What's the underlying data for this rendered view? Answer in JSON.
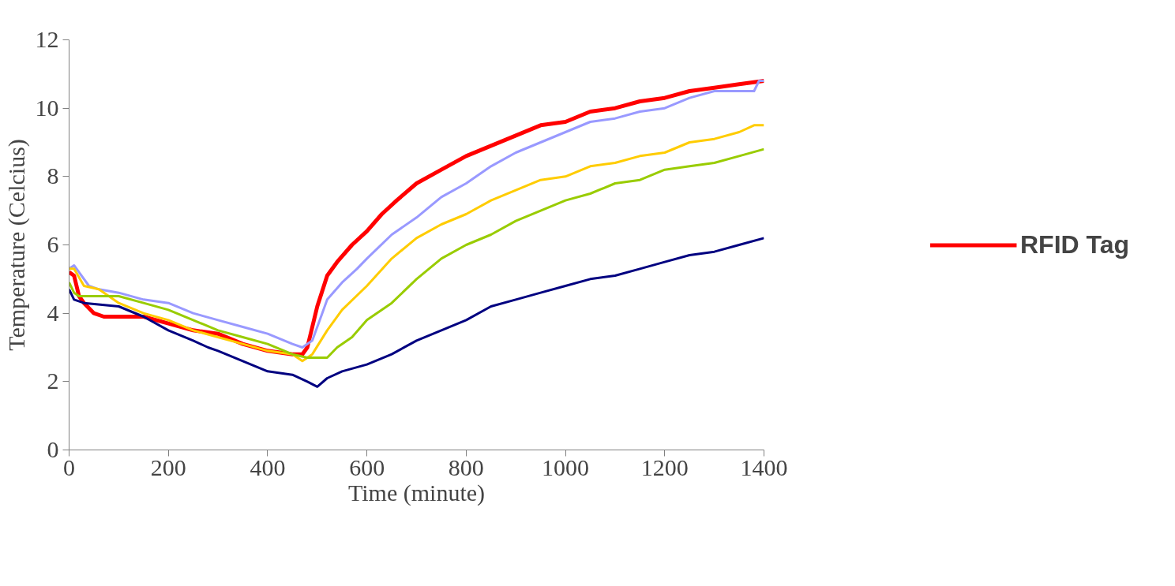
{
  "chart_data": {
    "type": "line",
    "xlabel": "Time (minute)",
    "ylabel": "Temperature (Celcius)",
    "xlim": [
      0,
      1400
    ],
    "xticks": [
      0,
      200,
      400,
      600,
      800,
      1000,
      1200,
      1400
    ],
    "ylim": [
      0,
      12
    ],
    "yticks": [
      0,
      2,
      4,
      6,
      8,
      10,
      12
    ],
    "grid": false,
    "legend": "right",
    "marker": "none",
    "line_style": "solid",
    "series": [
      {
        "name": "RFID Tag",
        "color": "#ff0000",
        "x": [
          0,
          10,
          20,
          30,
          50,
          70,
          150,
          200,
          250,
          300,
          350,
          400,
          450,
          470,
          480,
          500,
          520,
          540,
          570,
          600,
          630,
          660,
          700,
          750,
          800,
          850,
          900,
          950,
          1000,
          1050,
          1100,
          1150,
          1200,
          1250,
          1300,
          1350,
          1400
        ],
        "values": [
          5.2,
          5.1,
          4.5,
          4.3,
          4.0,
          3.9,
          3.9,
          3.7,
          3.5,
          3.4,
          3.1,
          2.9,
          2.8,
          2.8,
          3.0,
          4.2,
          5.1,
          5.5,
          6.0,
          6.4,
          6.9,
          7.3,
          7.8,
          8.2,
          8.6,
          8.9,
          9.2,
          9.5,
          9.6,
          9.9,
          10.0,
          10.2,
          10.3,
          10.5,
          10.6,
          10.7,
          10.8
        ]
      },
      {
        "color": "#9999ff",
        "x": [
          0,
          10,
          20,
          40,
          60,
          100,
          150,
          200,
          250,
          300,
          350,
          400,
          450,
          470,
          490,
          510,
          520,
          550,
          580,
          600,
          650,
          700,
          750,
          800,
          850,
          900,
          950,
          1000,
          1050,
          1100,
          1150,
          1200,
          1250,
          1300,
          1380,
          1390,
          1400
        ],
        "values": [
          5.3,
          5.4,
          5.2,
          4.8,
          4.7,
          4.6,
          4.4,
          4.3,
          4.0,
          3.8,
          3.6,
          3.4,
          3.1,
          3.0,
          3.2,
          4.0,
          4.4,
          4.9,
          5.3,
          5.6,
          6.3,
          6.8,
          7.4,
          7.8,
          8.3,
          8.7,
          9.0,
          9.3,
          9.6,
          9.7,
          9.9,
          10.0,
          10.3,
          10.5,
          10.5,
          10.8,
          10.8
        ]
      },
      {
        "color": "#ffcc00",
        "x": [
          0,
          10,
          30,
          60,
          100,
          150,
          200,
          250,
          300,
          350,
          400,
          450,
          470,
          490,
          520,
          550,
          600,
          650,
          700,
          750,
          800,
          850,
          900,
          950,
          1000,
          1050,
          1100,
          1150,
          1200,
          1250,
          1300,
          1350,
          1380,
          1400
        ],
        "values": [
          5.3,
          5.3,
          4.8,
          4.7,
          4.3,
          4.0,
          3.8,
          3.5,
          3.3,
          3.1,
          2.9,
          2.8,
          2.6,
          2.8,
          3.5,
          4.1,
          4.8,
          5.6,
          6.2,
          6.6,
          6.9,
          7.3,
          7.6,
          7.9,
          8.0,
          8.3,
          8.4,
          8.6,
          8.7,
          9.0,
          9.1,
          9.3,
          9.5,
          9.5
        ]
      },
      {
        "color": "#99cc00",
        "x": [
          0,
          10,
          20,
          100,
          150,
          200,
          250,
          300,
          350,
          400,
          450,
          480,
          520,
          540,
          570,
          600,
          650,
          700,
          750,
          800,
          850,
          900,
          950,
          1000,
          1050,
          1100,
          1150,
          1200,
          1250,
          1300,
          1350,
          1400
        ],
        "values": [
          4.9,
          4.6,
          4.5,
          4.5,
          4.3,
          4.1,
          3.8,
          3.5,
          3.3,
          3.1,
          2.8,
          2.7,
          2.7,
          3.0,
          3.3,
          3.8,
          4.3,
          5.0,
          5.6,
          6.0,
          6.3,
          6.7,
          7.0,
          7.3,
          7.5,
          7.8,
          7.9,
          8.2,
          8.3,
          8.4,
          8.6,
          8.8
        ]
      },
      {
        "color": "#000080",
        "x": [
          0,
          10,
          30,
          100,
          150,
          200,
          250,
          280,
          300,
          350,
          400,
          450,
          480,
          500,
          520,
          550,
          600,
          650,
          700,
          750,
          800,
          850,
          900,
          950,
          1000,
          1050,
          1100,
          1150,
          1200,
          1250,
          1300,
          1350,
          1400
        ],
        "values": [
          4.7,
          4.4,
          4.3,
          4.2,
          3.9,
          3.5,
          3.2,
          3.0,
          2.9,
          2.6,
          2.3,
          2.2,
          2.0,
          1.85,
          2.1,
          2.3,
          2.5,
          2.8,
          3.2,
          3.5,
          3.8,
          4.2,
          4.4,
          4.6,
          4.8,
          5.0,
          5.1,
          5.3,
          5.5,
          5.7,
          5.8,
          6.0,
          6.2
        ]
      }
    ]
  }
}
